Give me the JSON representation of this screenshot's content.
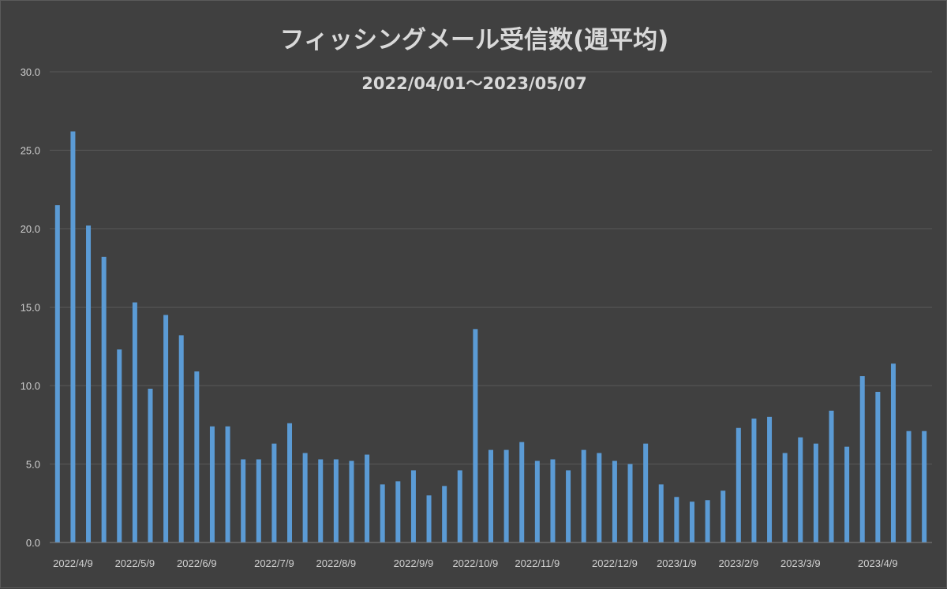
{
  "chart_data": {
    "type": "bar",
    "title": "フィッシングメール受信数(週平均)",
    "subtitle": "2022/04/01～2023/05/07",
    "xlabel": "",
    "ylabel": "",
    "ylim": [
      0,
      30
    ],
    "yticks": [
      "0.0",
      "5.0",
      "10.0",
      "15.0",
      "20.0",
      "25.0",
      "30.0"
    ],
    "grid": true,
    "legend": "none",
    "bar_color": "#5b9bd5",
    "background": "#404040",
    "x_tick_labels": [
      {
        "label": "2022/4/9",
        "index": 1
      },
      {
        "label": "2022/5/9",
        "index": 5
      },
      {
        "label": "2022/6/9",
        "index": 9
      },
      {
        "label": "2022/7/9",
        "index": 14
      },
      {
        "label": "2022/8/9",
        "index": 18
      },
      {
        "label": "2022/9/9",
        "index": 23
      },
      {
        "label": "2022/10/9",
        "index": 27
      },
      {
        "label": "2022/11/9",
        "index": 31
      },
      {
        "label": "2022/12/9",
        "index": 36
      },
      {
        "label": "2023/1/9",
        "index": 40
      },
      {
        "label": "2023/2/9",
        "index": 44
      },
      {
        "label": "2023/3/9",
        "index": 48
      },
      {
        "label": "2023/4/9",
        "index": 53
      }
    ],
    "values": [
      21.5,
      26.2,
      20.2,
      18.2,
      12.3,
      15.3,
      9.8,
      14.5,
      13.2,
      10.9,
      7.4,
      7.4,
      5.3,
      5.3,
      6.3,
      7.6,
      5.7,
      5.3,
      5.3,
      5.2,
      5.6,
      3.7,
      3.9,
      4.6,
      3.0,
      3.6,
      4.6,
      13.6,
      5.9,
      5.9,
      6.4,
      5.2,
      5.3,
      4.6,
      5.9,
      5.7,
      5.2,
      5.0,
      6.3,
      3.7,
      2.9,
      2.6,
      2.7,
      3.3,
      7.3,
      7.9,
      8.0,
      5.7,
      6.7,
      6.3,
      8.4,
      6.1,
      10.6,
      9.6,
      11.4,
      7.1,
      7.1
    ]
  }
}
